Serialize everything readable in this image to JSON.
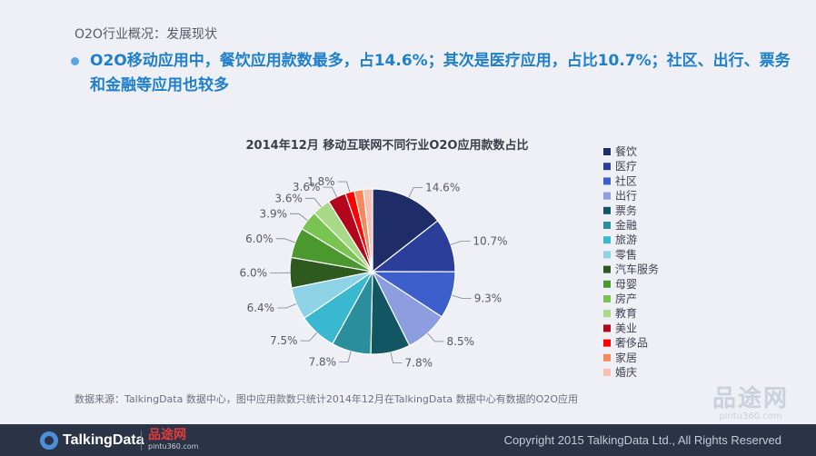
{
  "header": {
    "breadcrumb": "O2O行业概况：发展现状",
    "headline": "O2O移动应用中，餐饮应用款数最多，占14.6%；其次是医疗应用，占比10.7%；社区、出行、票务和金融等应用也较多"
  },
  "chart_data": {
    "type": "pie",
    "title": "2014年12月 移动互联网不同行业O2O应用款数占比",
    "legend_position": "right",
    "unit": "%",
    "categories": [
      "餐饮",
      "医疗",
      "社区",
      "出行",
      "票务",
      "金融",
      "旅游",
      "零售",
      "汽车服务",
      "母婴",
      "房产",
      "教育",
      "美业",
      "奢侈品",
      "家居",
      "婚庆"
    ],
    "values": [
      14.6,
      10.7,
      9.3,
      8.5,
      7.8,
      7.8,
      7.5,
      6.4,
      6.0,
      6.0,
      3.9,
      3.6,
      3.6,
      1.8,
      1.8,
      1.8
    ],
    "data_labels": [
      "14.6%",
      "10.7%",
      "9.3%",
      "8.5%",
      "7.8%",
      "7.8%",
      "7.5%",
      "6.4%",
      "6.0%",
      "6.0%",
      "3.9%",
      "3.6%",
      "3.6%",
      "1.8%",
      "",
      ""
    ],
    "colors": [
      "#1e2d68",
      "#2b3f9a",
      "#3c5fcc",
      "#8c9de0",
      "#135663",
      "#2a8e9c",
      "#39b8cf",
      "#8ed2e6",
      "#2f5a1f",
      "#4a982e",
      "#79c450",
      "#a7d987",
      "#b3061c",
      "#ff0000",
      "#f48a5c",
      "#f8c0b4"
    ]
  },
  "source": "数据来源：TalkingData 数据中心，图中应用款数只统计2014年12月在TalkingData 数据中心有数据的O2O应用",
  "footer": {
    "brand": "TalkingData",
    "partner": "品途网",
    "partner_url": "pintu360.com",
    "copyright": "Copyright 2015 TalkingData Ltd., All Rights Reserved"
  },
  "watermark": {
    "name": "品途网",
    "url": "pintu360.com"
  }
}
